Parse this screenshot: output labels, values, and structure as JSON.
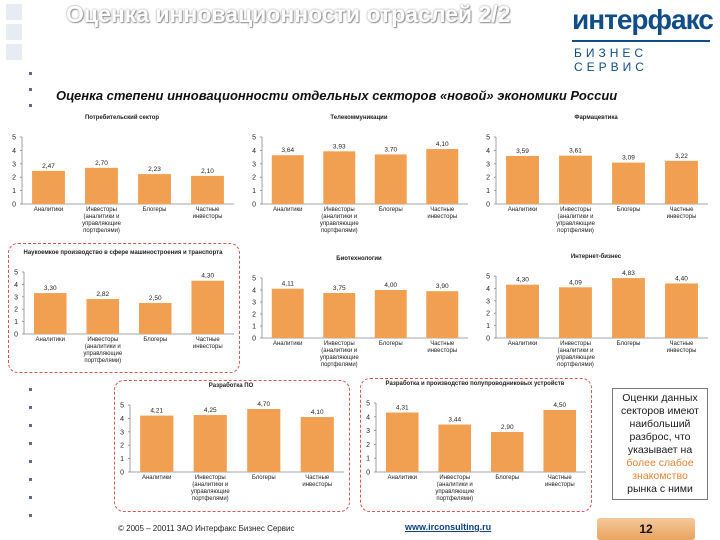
{
  "header": {
    "title": "Оценка инновационности отраслей 2/2",
    "logo_top": "интерфакс",
    "logo_bottom": "БИЗНЕС СЕРВИС"
  },
  "subtitle": "Оценка степени инновационности отдельных секторов «новой» экономики России",
  "note": {
    "part1": "Оценки данных секторов имеют наибольший разброс, что указывает на ",
    "highlight": "более слабое знакомство",
    "part2": " рынка с ними"
  },
  "footer": {
    "copyright": "© 2005 – 20011 ЗАО Интерфакс Бизнес Сервис",
    "url": "www.irconsulting.ru",
    "page": "12"
  },
  "colors": {
    "bar": "#f0a050",
    "accent": "#e8822e",
    "brand": "#0f4c88",
    "dash": "#d9534f"
  },
  "chart_data": [
    {
      "type": "bar",
      "title": "Потребительский сектор",
      "categories": [
        "Аналитики",
        "Инвесторы (аналитики и управляющие портфелями)",
        "Блогеры",
        "Частные инвесторы"
      ],
      "values": [
        2.47,
        2.7,
        2.23,
        2.1
      ],
      "labels": [
        "2,47",
        "2,70",
        "2,23",
        "2,10"
      ],
      "ylim": [
        0,
        5
      ]
    },
    {
      "type": "bar",
      "title": "Телекоммуникации",
      "categories": [
        "Аналитики",
        "Инвесторы (аналитики и управляющие портфелями)",
        "Блогеры",
        "Частные инвесторы"
      ],
      "values": [
        3.64,
        3.93,
        3.7,
        4.1
      ],
      "labels": [
        "3,64",
        "3,93",
        "3,70",
        "4,10"
      ],
      "ylim": [
        0,
        5
      ]
    },
    {
      "type": "bar",
      "title": "Фармацевтика",
      "categories": [
        "Аналитики",
        "Инвесторы (аналитики и управляющие портфелями)",
        "Блогеры",
        "Частные инвесторы"
      ],
      "values": [
        3.59,
        3.61,
        3.09,
        3.22
      ],
      "labels": [
        "3,59",
        "3,61",
        "3,09",
        "3,22"
      ],
      "ylim": [
        0,
        5
      ]
    },
    {
      "type": "bar",
      "title": "Наукоемкое производство в сфере машиностроения и транспорта",
      "categories": [
        "Аналитики",
        "Инвесторы (аналитики и управляющие портфелями)",
        "Блогеры",
        "Частные инвесторы"
      ],
      "values": [
        3.3,
        2.82,
        2.5,
        4.3
      ],
      "labels": [
        "3,30",
        "2,82",
        "2,50",
        "4,30"
      ],
      "ylim": [
        0,
        5
      ]
    },
    {
      "type": "bar",
      "title": "Биотехнологии",
      "categories": [
        "Аналитики",
        "Инвесторы (аналитики и управляющие портфелями)",
        "Блогеры",
        "Частные инвесторы"
      ],
      "values": [
        4.11,
        3.75,
        4.0,
        3.9
      ],
      "labels": [
        "4,11",
        "3,75",
        "4,00",
        "3,90"
      ],
      "ylim": [
        0,
        5
      ]
    },
    {
      "type": "bar",
      "title": "Интернет-бизнес",
      "categories": [
        "Аналитики",
        "Инвесторы (аналитики и управляющие портфелями)",
        "Блогеры",
        "Частные инвесторы"
      ],
      "values": [
        4.3,
        4.09,
        4.83,
        4.4
      ],
      "labels": [
        "4,30",
        "4,09",
        "4,83",
        "4,40"
      ],
      "ylim": [
        0,
        5
      ]
    },
    {
      "type": "bar",
      "title": "Разработка ПО",
      "categories": [
        "Аналитики",
        "Инвесторы (аналитики и управляющие портфелями)",
        "Блогеры",
        "Частные инвесторы"
      ],
      "values": [
        4.21,
        4.25,
        4.7,
        4.1
      ],
      "labels": [
        "4,21",
        "4,25",
        "4,70",
        "4,10"
      ],
      "ylim": [
        0,
        5
      ]
    },
    {
      "type": "bar",
      "title": "Разработка и производство полупроводниковых устройств",
      "categories": [
        "Аналитики",
        "Инвесторы (аналитики и управляющие портфелями)",
        "Блогеры",
        "Частные инвесторы"
      ],
      "values": [
        4.31,
        3.44,
        2.9,
        4.5
      ],
      "labels": [
        "4,31",
        "3,44",
        "2,90",
        "4,50"
      ],
      "ylim": [
        0,
        5
      ]
    }
  ]
}
